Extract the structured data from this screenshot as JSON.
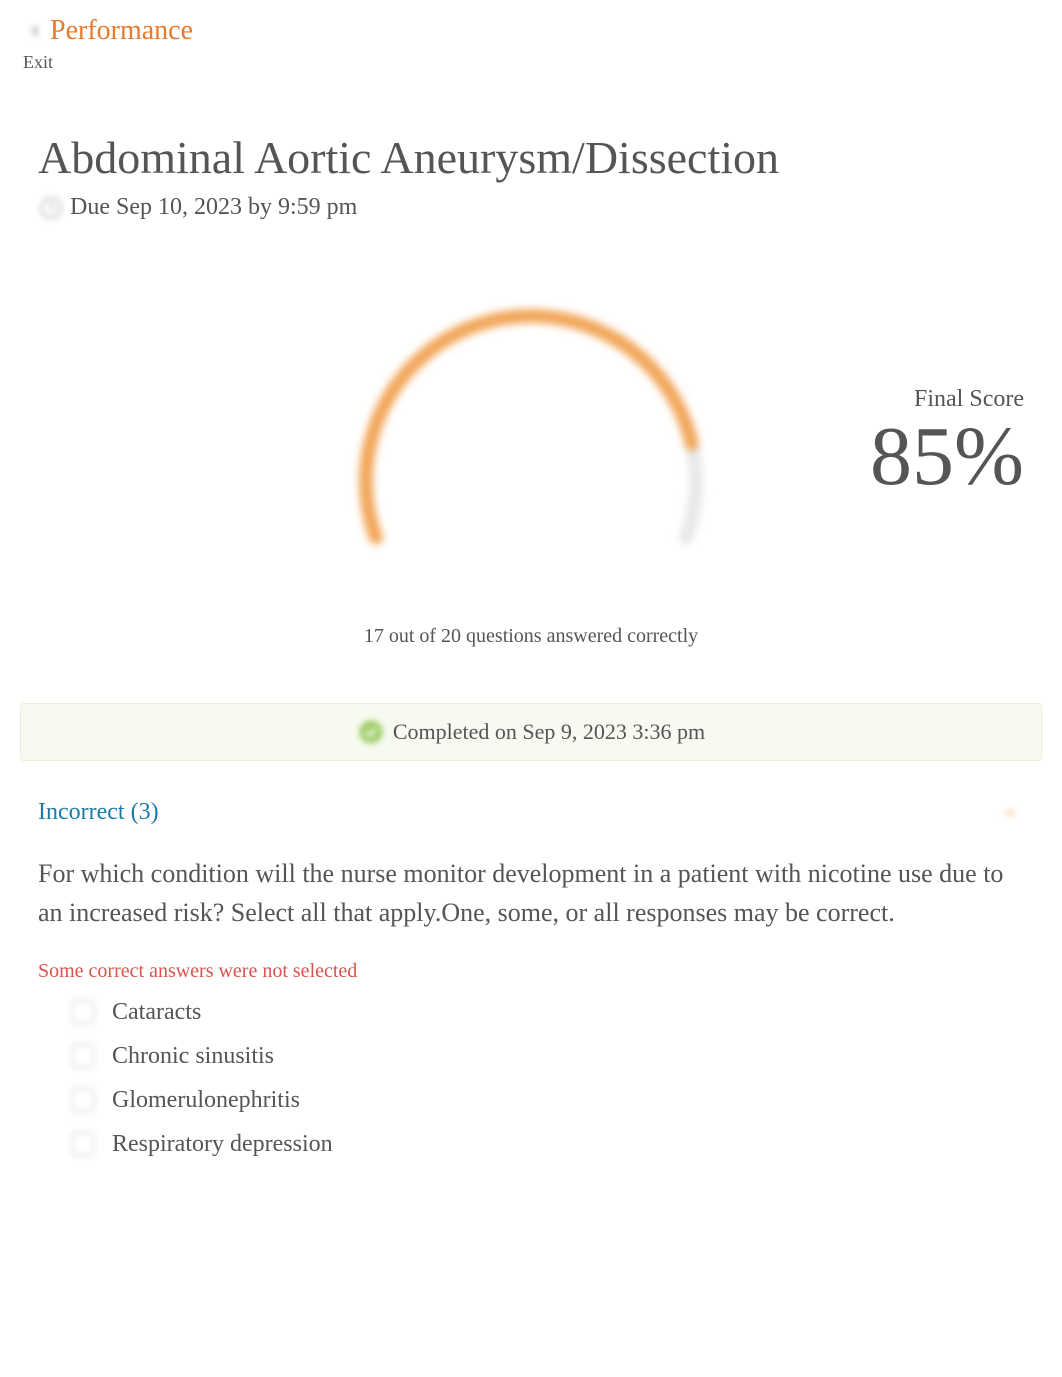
{
  "header": {
    "performance_label": "Performance",
    "performance_color": "#e67a2e",
    "exit_label": "Exit"
  },
  "page": {
    "title": "Abdominal Aortic Aneurysm/Dissection",
    "due_text": "Due Sep 10, 2023 by 9:59 pm"
  },
  "score": {
    "gauge": {
      "type": "radial-gauge",
      "percent": 85,
      "start_angle_deg": -200,
      "end_angle_deg": 20,
      "stroke_width": 14,
      "radius": 165,
      "fg_color": "#f2a65a",
      "bg_color": "#e8e8e8",
      "center_bg": "#ffffff"
    },
    "label": "Final Score",
    "value": "85%",
    "summary": "17 out of 20 questions answered correctly",
    "label_fontsize": 24,
    "value_fontsize": 84,
    "text_color": "#555555"
  },
  "completed": {
    "text": "Completed on Sep 9, 2023 3:36 pm",
    "bg_color": "#f7faf0",
    "border_color": "#e8efd8",
    "icon_color": "#8bc34a"
  },
  "incorrect": {
    "label": "Incorrect (3)",
    "label_color": "#1a7aa8",
    "chevron_color": "#f2a65a"
  },
  "question": {
    "text": "For which condition will the nurse monitor development in a patient with nicotine use due to an increased risk?   Select all that apply.One, some, or all responses may be correct.",
    "feedback": "Some correct answers were not selected",
    "feedback_color": "#d9534f",
    "answers": [
      {
        "label": "Cataracts"
      },
      {
        "label": "Chronic sinusitis"
      },
      {
        "label": "Glomerulonephritis"
      },
      {
        "label": "Respiratory depression"
      }
    ]
  }
}
